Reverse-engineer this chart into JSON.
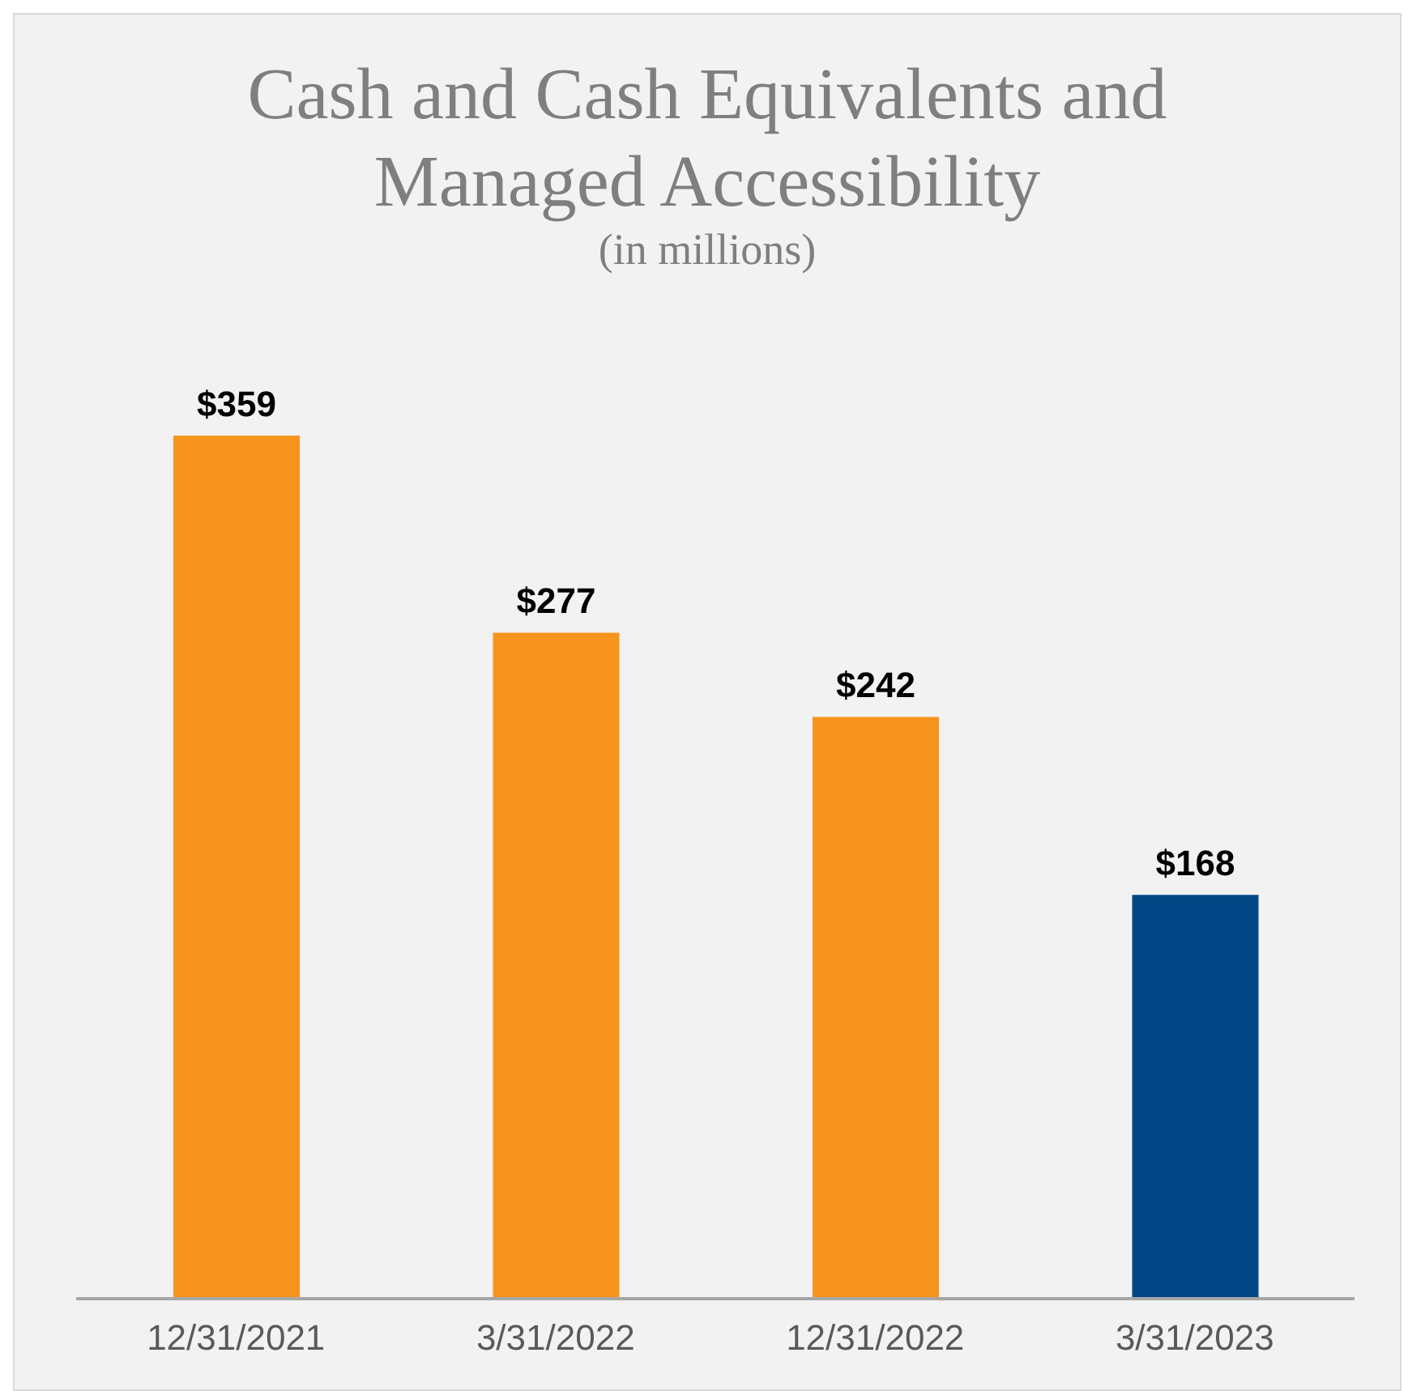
{
  "chart_data": {
    "type": "bar",
    "title": "Cash and Cash Equivalents and Managed Accessibility",
    "subtitle": "(in millions)",
    "categories": [
      "12/31/2021",
      "3/31/2022",
      "12/31/2022",
      "3/31/2023"
    ],
    "values": [
      359,
      277,
      242,
      168
    ],
    "colors": [
      "#f7941d",
      "#f7941d",
      "#f7941d",
      "#004684"
    ],
    "value_labels": [
      "$359",
      "$277",
      "$242",
      "$168"
    ],
    "grid": false,
    "legend": false
  }
}
